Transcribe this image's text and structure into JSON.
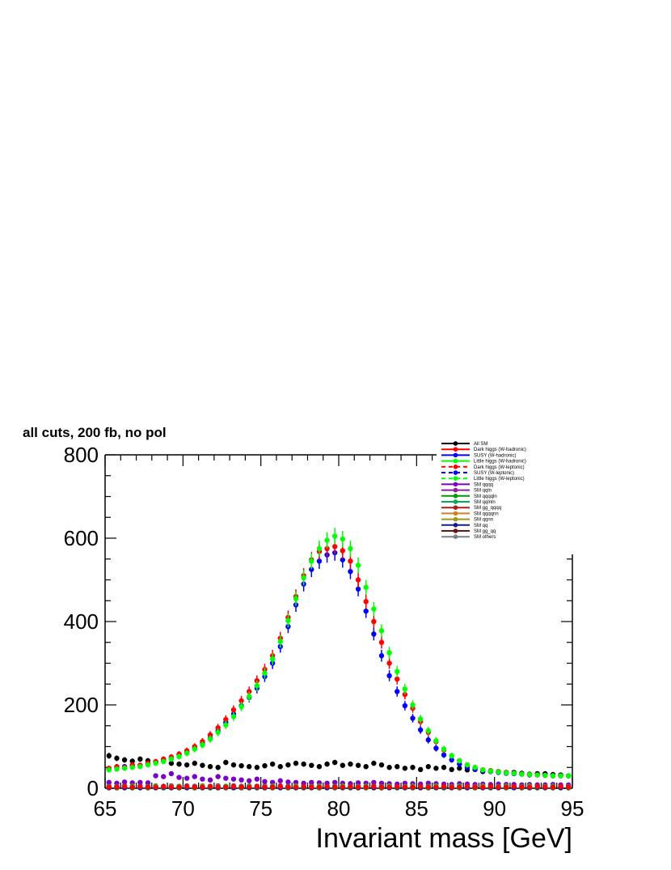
{
  "chart_data": {
    "type": "scatter",
    "title": "all cuts, 200 fb, no pol",
    "xlabel": "Invariant mass [GeV]",
    "ylabel": "",
    "xlim": [
      65,
      95
    ],
    "ylim": [
      0,
      800
    ],
    "x_ticks": [
      "65",
      "70",
      "75",
      "80",
      "85",
      "90",
      "95"
    ],
    "y_ticks": [
      "0",
      "200",
      "400",
      "600",
      "800"
    ],
    "grid": false,
    "legend_position": "top-right",
    "x": [
      65.25,
      65.75,
      66.25,
      66.75,
      67.25,
      67.75,
      68.25,
      68.75,
      69.25,
      69.75,
      70.25,
      70.75,
      71.25,
      71.75,
      72.25,
      72.75,
      73.25,
      73.75,
      74.25,
      74.75,
      75.25,
      75.75,
      76.25,
      76.75,
      77.25,
      77.75,
      78.25,
      78.75,
      79.25,
      79.75,
      80.25,
      80.75,
      81.25,
      81.75,
      82.25,
      82.75,
      83.25,
      83.75,
      84.25,
      84.75,
      85.25,
      85.75,
      86.25,
      86.75,
      87.25,
      87.75,
      88.25,
      88.75,
      89.25,
      89.75,
      90.25,
      90.75,
      91.25,
      91.75,
      92.25,
      92.75,
      93.25,
      93.75,
      94.25,
      94.75
    ],
    "series": [
      {
        "name": "All SM",
        "color": "#000000",
        "style": "solid",
        "values": [
          78,
          72,
          68,
          65,
          70,
          66,
          62,
          65,
          60,
          58,
          56,
          60,
          55,
          52,
          50,
          62,
          56,
          54,
          52,
          50,
          54,
          58,
          52,
          56,
          60,
          58,
          55,
          52,
          58,
          62,
          55,
          58,
          55,
          52,
          60,
          56,
          50,
          52,
          48,
          50,
          45,
          52,
          48,
          50,
          45,
          48,
          44,
          46,
          40,
          42,
          40,
          38,
          38,
          36,
          34,
          35,
          35,
          33,
          32,
          30
        ]
      },
      {
        "name": "Dark higgs (W-hadronic)",
        "color": "#ff0000",
        "style": "solid",
        "values": [
          48,
          52,
          50,
          56,
          55,
          60,
          64,
          70,
          75,
          82,
          90,
          100,
          112,
          128,
          145,
          165,
          188,
          210,
          232,
          258,
          285,
          318,
          360,
          410,
          460,
          510,
          548,
          568,
          575,
          580,
          570,
          545,
          500,
          448,
          400,
          350,
          300,
          262,
          225,
          192,
          160,
          134,
          112,
          92,
          78,
          66,
          56,
          50,
          44,
          42,
          40,
          38,
          36,
          34,
          33,
          32,
          31,
          30,
          30,
          30
        ]
      },
      {
        "name": "SUSY (W-hadronic)",
        "color": "#0000ff",
        "style": "solid",
        "values": [
          46,
          50,
          52,
          54,
          55,
          58,
          62,
          68,
          72,
          80,
          86,
          96,
          108,
          120,
          138,
          158,
          178,
          198,
          218,
          240,
          268,
          300,
          340,
          388,
          440,
          490,
          525,
          545,
          560,
          565,
          548,
          520,
          478,
          425,
          370,
          318,
          270,
          232,
          198,
          168,
          140,
          116,
          96,
          80,
          68,
          58,
          50,
          45,
          42,
          40,
          38,
          36,
          35,
          34,
          32,
          32,
          31,
          30,
          30,
          30
        ]
      },
      {
        "name": "Little higgs (W-hadronic)",
        "color": "#00ff00",
        "style": "solid",
        "values": [
          44,
          46,
          48,
          50,
          52,
          56,
          60,
          64,
          70,
          76,
          84,
          94,
          104,
          118,
          134,
          152,
          172,
          196,
          220,
          246,
          276,
          310,
          352,
          402,
          455,
          505,
          545,
          575,
          595,
          605,
          598,
          575,
          535,
          482,
          430,
          378,
          325,
          280,
          238,
          200,
          166,
          138,
          114,
          94,
          78,
          66,
          56,
          50,
          44,
          41,
          39,
          37,
          36,
          34,
          33,
          32,
          31,
          30,
          30,
          30
        ]
      },
      {
        "name": "Dark higgs (W-leptonic)",
        "color": "#ff0000",
        "style": "dashed",
        "values": [
          3,
          3,
          4,
          3,
          4,
          3,
          3,
          4,
          3,
          3,
          4,
          3,
          3,
          4,
          3,
          3,
          4,
          3,
          3,
          4,
          3,
          3,
          4,
          3,
          3,
          4,
          3,
          3,
          4,
          3,
          3,
          4,
          3,
          3,
          4,
          3,
          3,
          4,
          3,
          3,
          4,
          3,
          3,
          4,
          3,
          3,
          4,
          3,
          3,
          4,
          3,
          3,
          4,
          3,
          3,
          4,
          3,
          3,
          4,
          3
        ]
      },
      {
        "name": "SUSY (W-leptonic)",
        "color": "#0000ff",
        "style": "dashed",
        "values": [
          2,
          3,
          2,
          3,
          2,
          3,
          2,
          3,
          2,
          3,
          2,
          3,
          2,
          3,
          2,
          3,
          2,
          3,
          2,
          3,
          2,
          3,
          2,
          3,
          2,
          3,
          2,
          3,
          2,
          3,
          2,
          3,
          2,
          3,
          2,
          3,
          2,
          3,
          2,
          3,
          2,
          3,
          2,
          3,
          2,
          3,
          2,
          3,
          2,
          3,
          2,
          3,
          2,
          3,
          2,
          3,
          2,
          3,
          2,
          3
        ]
      },
      {
        "name": "Little higgs (W-leptonic)",
        "color": "#00ff00",
        "style": "dashed",
        "values": [
          4,
          4,
          4,
          5,
          4,
          4,
          5,
          4,
          4,
          5,
          4,
          4,
          5,
          4,
          4,
          5,
          4,
          4,
          5,
          4,
          4,
          5,
          4,
          4,
          5,
          4,
          4,
          5,
          4,
          4,
          5,
          4,
          4,
          5,
          4,
          4,
          5,
          4,
          4,
          5,
          4,
          4,
          5,
          4,
          4,
          5,
          4,
          4,
          5,
          4,
          4,
          5,
          4,
          4,
          5,
          4,
          4,
          5,
          4,
          4
        ]
      },
      {
        "name": "SM qqqq",
        "color": "#7b00c8",
        "style": "solid",
        "values": [
          14,
          12,
          15,
          13,
          14,
          13,
          30,
          28,
          35,
          26,
          24,
          28,
          22,
          20,
          28,
          24,
          22,
          20,
          18,
          22,
          16,
          14,
          18,
          15,
          14,
          12,
          14,
          13,
          12,
          14,
          12,
          11,
          13,
          12,
          14,
          12,
          11,
          10,
          12,
          11,
          10,
          12,
          11,
          10,
          9,
          11,
          10,
          9,
          10,
          9,
          10,
          9,
          9,
          8,
          9,
          8,
          8,
          9,
          8,
          8
        ]
      },
      {
        "name": "SM qqln",
        "color": "#8e1fa0",
        "style": "solid",
        "values": [
          6,
          5,
          6,
          5,
          6,
          5,
          6,
          5,
          6,
          5,
          6,
          5,
          6,
          5,
          6,
          5,
          6,
          5,
          6,
          5,
          6,
          5,
          6,
          5,
          6,
          5,
          6,
          5,
          6,
          5,
          6,
          5,
          6,
          5,
          6,
          5,
          6,
          5,
          6,
          5,
          6,
          5,
          6,
          5,
          6,
          5,
          6,
          5,
          6,
          5,
          6,
          5,
          6,
          5,
          6,
          5,
          6,
          5,
          6,
          5
        ]
      },
      {
        "name": "SM qqqqln",
        "color": "#009a00",
        "style": "solid",
        "values": [
          2,
          2,
          2,
          2,
          2,
          2,
          2,
          2,
          2,
          2,
          2,
          2,
          2,
          2,
          2,
          2,
          2,
          2,
          2,
          2,
          2,
          2,
          2,
          2,
          2,
          2,
          2,
          2,
          2,
          2,
          2,
          2,
          2,
          2,
          2,
          2,
          2,
          2,
          2,
          2,
          2,
          2,
          2,
          2,
          2,
          2,
          2,
          2,
          2,
          2,
          2,
          2,
          2,
          2,
          2,
          2,
          2,
          2,
          2,
          2
        ]
      },
      {
        "name": "SM qqlnln",
        "color": "#00b050",
        "style": "solid",
        "values": [
          1,
          1,
          1,
          1,
          1,
          1,
          1,
          1,
          1,
          1,
          1,
          1,
          1,
          1,
          1,
          1,
          1,
          1,
          1,
          1,
          1,
          1,
          1,
          1,
          1,
          1,
          1,
          1,
          1,
          1,
          1,
          1,
          1,
          1,
          1,
          1,
          1,
          1,
          1,
          1,
          1,
          1,
          1,
          1,
          1,
          1,
          1,
          1,
          1,
          1,
          1,
          1,
          1,
          1,
          1,
          1,
          1,
          1,
          1,
          1
        ]
      },
      {
        "name": "SM gg_qqqq",
        "color": "#a52020",
        "style": "solid",
        "values": [
          1,
          1,
          1,
          1,
          1,
          1,
          1,
          1,
          1,
          1,
          1,
          1,
          1,
          1,
          1,
          1,
          1,
          1,
          1,
          1,
          1,
          1,
          1,
          1,
          1,
          1,
          1,
          1,
          1,
          1,
          1,
          1,
          1,
          1,
          1,
          1,
          1,
          1,
          1,
          1,
          1,
          1,
          1,
          1,
          1,
          1,
          1,
          1,
          1,
          1,
          1,
          1,
          1,
          1,
          1,
          1,
          1,
          1,
          1,
          1
        ]
      },
      {
        "name": "SM qqqqnn",
        "color": "#d08020",
        "style": "solid",
        "values": [
          1,
          1,
          1,
          1,
          1,
          1,
          1,
          1,
          1,
          1,
          1,
          1,
          1,
          1,
          1,
          1,
          1,
          1,
          1,
          1,
          1,
          1,
          1,
          1,
          1,
          1,
          1,
          1,
          1,
          1,
          1,
          1,
          1,
          1,
          1,
          1,
          1,
          1,
          1,
          1,
          1,
          1,
          1,
          1,
          1,
          1,
          1,
          1,
          1,
          1,
          1,
          1,
          1,
          1,
          1,
          1,
          1,
          1,
          1,
          1
        ]
      },
      {
        "name": "SM qqnn",
        "color": "#a09a10",
        "style": "solid",
        "values": [
          1,
          1,
          1,
          1,
          1,
          1,
          1,
          1,
          1,
          1,
          1,
          1,
          1,
          1,
          1,
          1,
          1,
          1,
          1,
          1,
          1,
          1,
          1,
          1,
          1,
          1,
          1,
          1,
          1,
          1,
          1,
          1,
          1,
          1,
          1,
          1,
          1,
          1,
          1,
          1,
          1,
          1,
          1,
          1,
          1,
          1,
          1,
          1,
          1,
          1,
          1,
          1,
          1,
          1,
          1,
          1,
          1,
          1,
          1,
          1
        ]
      },
      {
        "name": "SM qq",
        "color": "#1a1a90",
        "style": "solid",
        "values": [
          2,
          2,
          2,
          2,
          2,
          2,
          2,
          2,
          2,
          2,
          2,
          2,
          2,
          2,
          2,
          2,
          2,
          2,
          2,
          2,
          2,
          2,
          2,
          2,
          2,
          2,
          2,
          2,
          2,
          2,
          2,
          2,
          2,
          2,
          2,
          2,
          2,
          2,
          2,
          2,
          2,
          2,
          2,
          2,
          2,
          2,
          2,
          2,
          2,
          2,
          2,
          2,
          2,
          2,
          2,
          2,
          2,
          2,
          2,
          2
        ]
      },
      {
        "name": "SM gg_qq",
        "color": "#701010",
        "style": "solid",
        "values": [
          1,
          1,
          1,
          1,
          1,
          1,
          1,
          1,
          1,
          1,
          1,
          1,
          1,
          1,
          1,
          1,
          1,
          1,
          1,
          1,
          1,
          1,
          1,
          1,
          1,
          1,
          1,
          1,
          1,
          1,
          1,
          1,
          1,
          1,
          1,
          1,
          1,
          1,
          1,
          1,
          1,
          1,
          1,
          1,
          1,
          1,
          1,
          1,
          1,
          1,
          1,
          1,
          1,
          1,
          1,
          1,
          1,
          1,
          1,
          1
        ]
      },
      {
        "name": "SM others",
        "color": "#808080",
        "style": "solid",
        "values": [
          1,
          1,
          1,
          1,
          1,
          1,
          1,
          1,
          1,
          1,
          1,
          1,
          1,
          1,
          1,
          1,
          1,
          1,
          1,
          1,
          1,
          1,
          1,
          1,
          1,
          1,
          1,
          1,
          1,
          1,
          1,
          1,
          1,
          1,
          1,
          1,
          1,
          1,
          1,
          1,
          1,
          1,
          1,
          1,
          1,
          1,
          1,
          1,
          1,
          1,
          1,
          1,
          1,
          1,
          1,
          1,
          1,
          1,
          1,
          1
        ]
      }
    ]
  }
}
